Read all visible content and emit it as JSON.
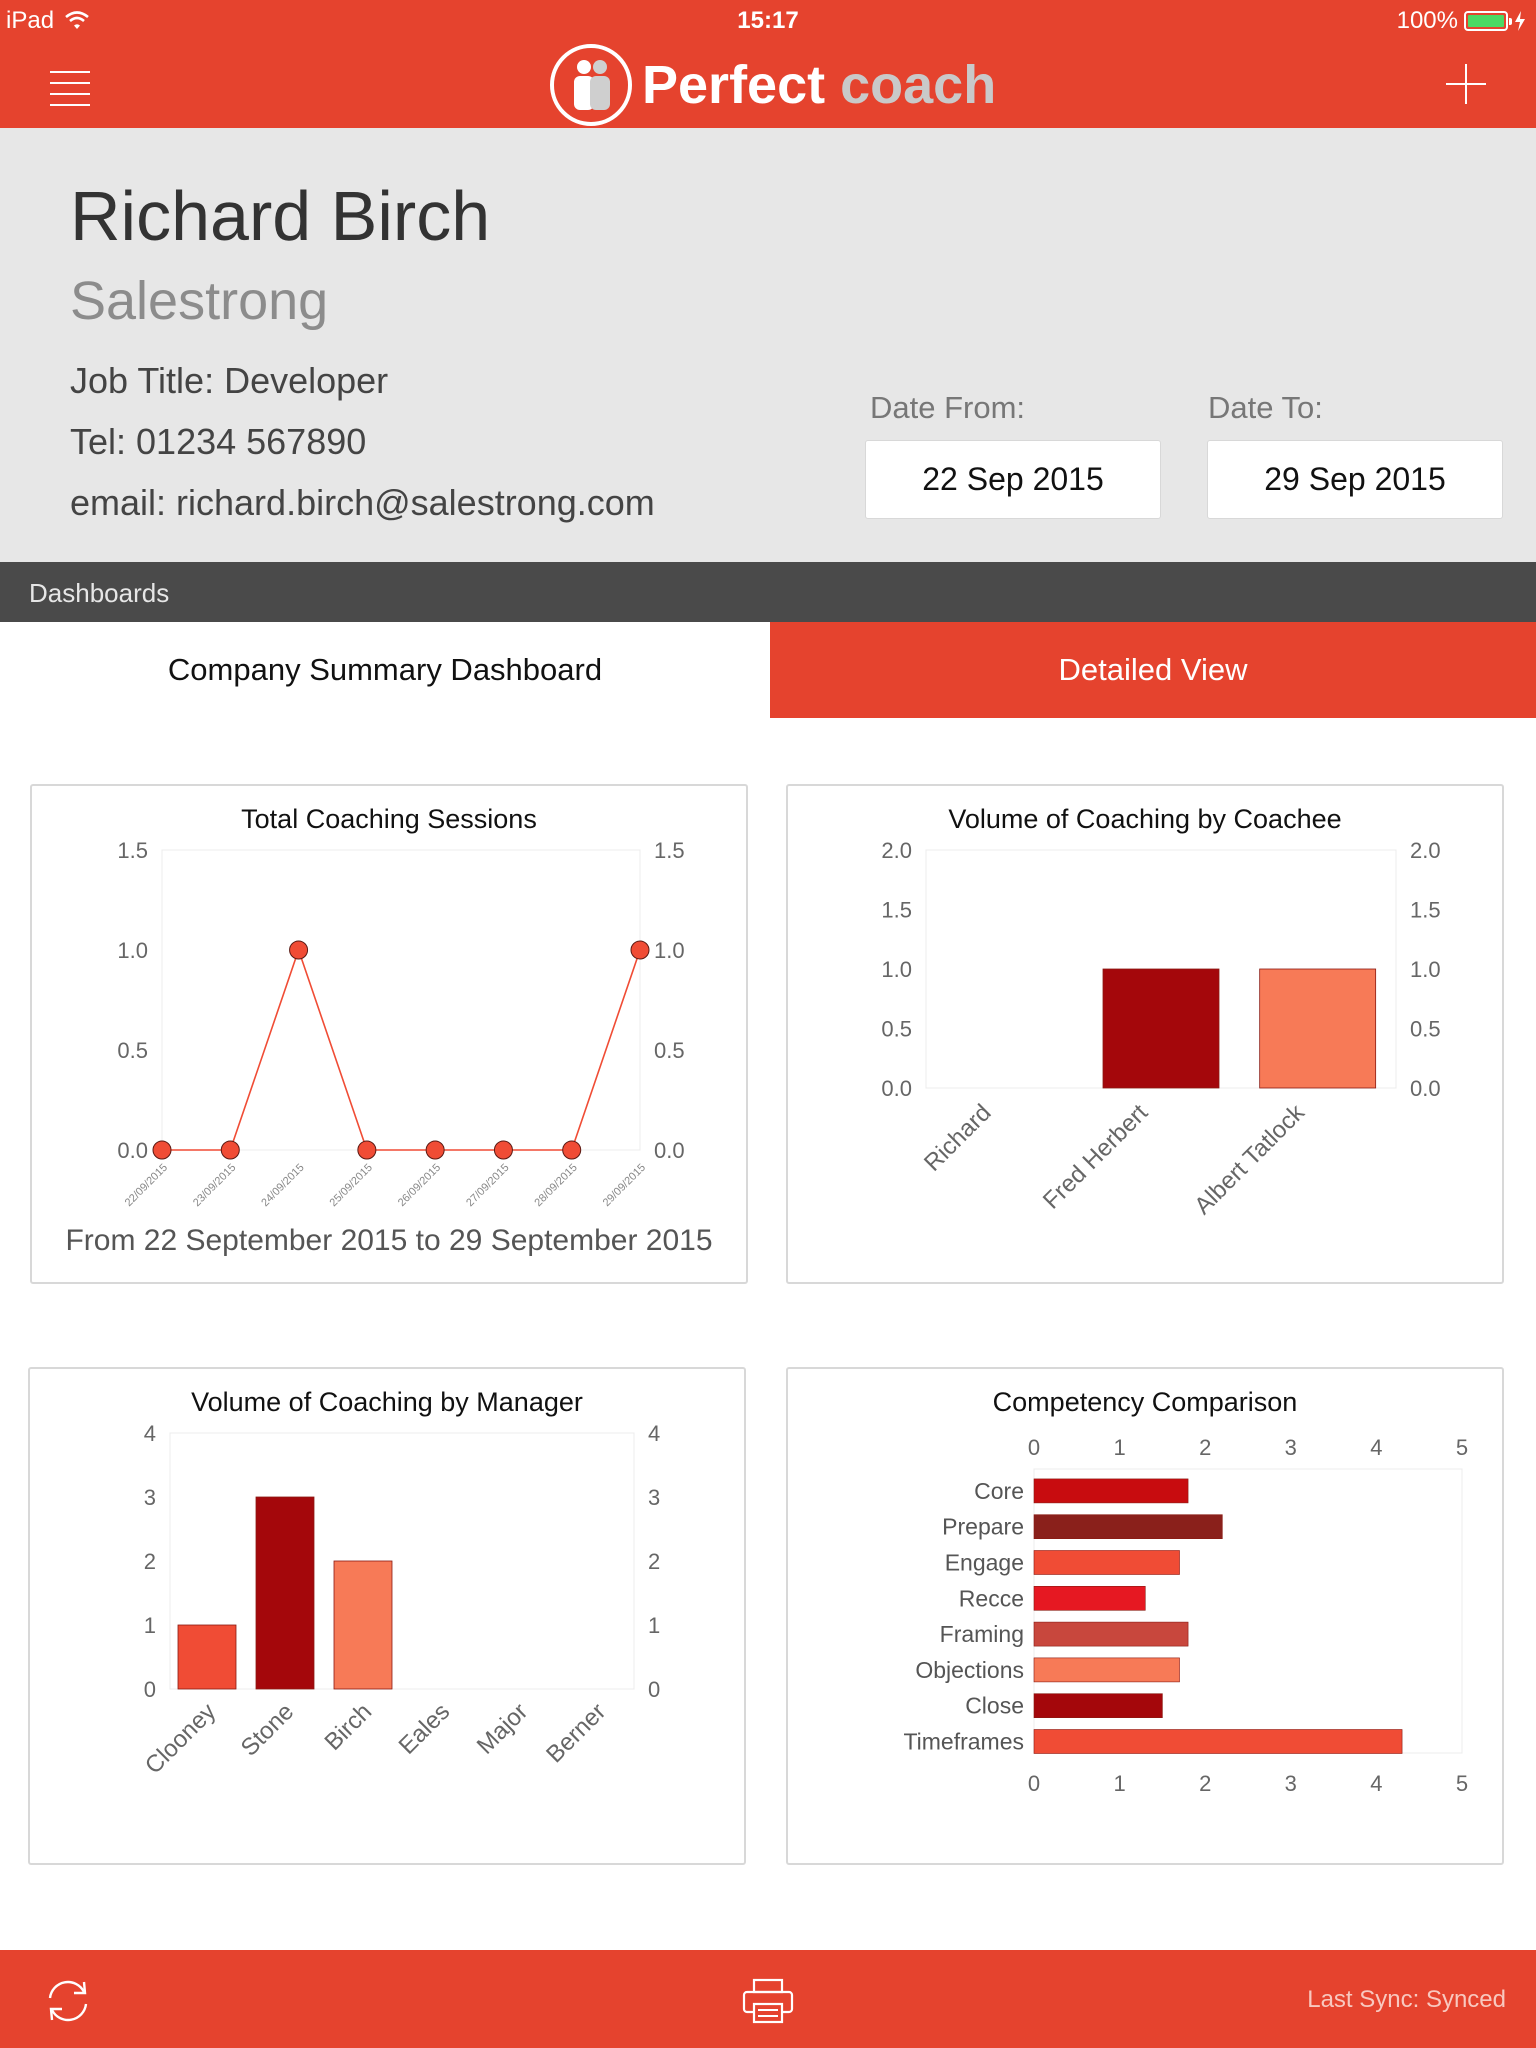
{
  "status_bar": {
    "device": "iPad",
    "time": "15:17",
    "battery": "100%",
    "battery_level": 1.0
  },
  "nav": {
    "brand_word1": "Perfect",
    "brand_word2": "coach",
    "icons": {
      "menu": "hamburger-icon",
      "add": "plus-icon",
      "logo": "people-logo-icon"
    }
  },
  "profile": {
    "name": "Richard Birch",
    "company": "Salestrong",
    "job_title": "Job Title: Developer",
    "tel": "Tel: 01234 567890",
    "email": "email: richard.birch@salestrong.com",
    "date_from_label": "Date From:",
    "date_from": "22 Sep 2015",
    "date_to_label": "Date To:",
    "date_to": "29 Sep 2015"
  },
  "section": {
    "title": "Dashboards"
  },
  "tabs": {
    "summary": "Company Summary Dashboard",
    "detailed": "Detailed View"
  },
  "colors": {
    "brand": "#e5432e",
    "dark_bar": "#a4070b",
    "light_bar": "#f77a57",
    "line": "#f04c35"
  },
  "footer": {
    "sync_status": "Last Sync: Synced",
    "icons": {
      "sync": "sync-icon",
      "print": "printer-icon"
    }
  },
  "chart_data": [
    {
      "id": "sessions",
      "type": "line",
      "title": "Total Coaching Sessions",
      "categories": [
        "22/09/2015",
        "23/09/2015",
        "24/09/2015",
        "25/09/2015",
        "26/09/2015",
        "27/09/2015",
        "28/09/2015",
        "29/09/2015"
      ],
      "values": [
        0,
        0,
        1,
        0,
        0,
        0,
        0,
        1
      ],
      "ylim": [
        0,
        1.5
      ],
      "yticks": [
        "0.0",
        "0.5",
        "1.0",
        "1.5"
      ],
      "caption": "From 22 September 2015 to 29 September 2015"
    },
    {
      "id": "coachee",
      "type": "bar",
      "title": "Volume of Coaching by Coachee",
      "categories": [
        "Richard",
        "Fred Herbert",
        "Albert Tatlock"
      ],
      "values": [
        0,
        1,
        1
      ],
      "colors": [
        "#a4070b",
        "#a4070b",
        "#f77a57"
      ],
      "ylim": [
        0,
        2
      ],
      "yticks": [
        "0.0",
        "0.5",
        "1.0",
        "1.5",
        "2.0"
      ]
    },
    {
      "id": "manager",
      "type": "bar",
      "title": "Volume of Coaching by Manager",
      "categories": [
        "Clooney",
        "Stone",
        "Birch",
        "Eales",
        "Major",
        "Berner"
      ],
      "values": [
        1,
        3,
        2,
        0,
        0,
        0
      ],
      "colors": [
        "#f04c35",
        "#a4070b",
        "#f77a57",
        "#f04c35",
        "#f04c35",
        "#f04c35"
      ],
      "ylim": [
        0,
        4
      ],
      "yticks": [
        "0",
        "1",
        "2",
        "3",
        "4"
      ]
    },
    {
      "id": "competency",
      "type": "bar",
      "orientation": "horizontal",
      "title": "Competency Comparison",
      "categories": [
        "Core",
        "Prepare",
        "Engage",
        "Recce",
        "Framing",
        "Objections",
        "Close",
        "Timeframes"
      ],
      "values": [
        1.8,
        2.2,
        1.7,
        1.3,
        1.8,
        1.7,
        1.5,
        4.3
      ],
      "colors": [
        "#c80c0f",
        "#8a201b",
        "#f04c35",
        "#e61822",
        "#c8473d",
        "#f77a57",
        "#a4070b",
        "#f04c35"
      ],
      "xlim": [
        0,
        5
      ],
      "xticks": [
        "0",
        "1",
        "2",
        "3",
        "4",
        "5"
      ]
    }
  ]
}
